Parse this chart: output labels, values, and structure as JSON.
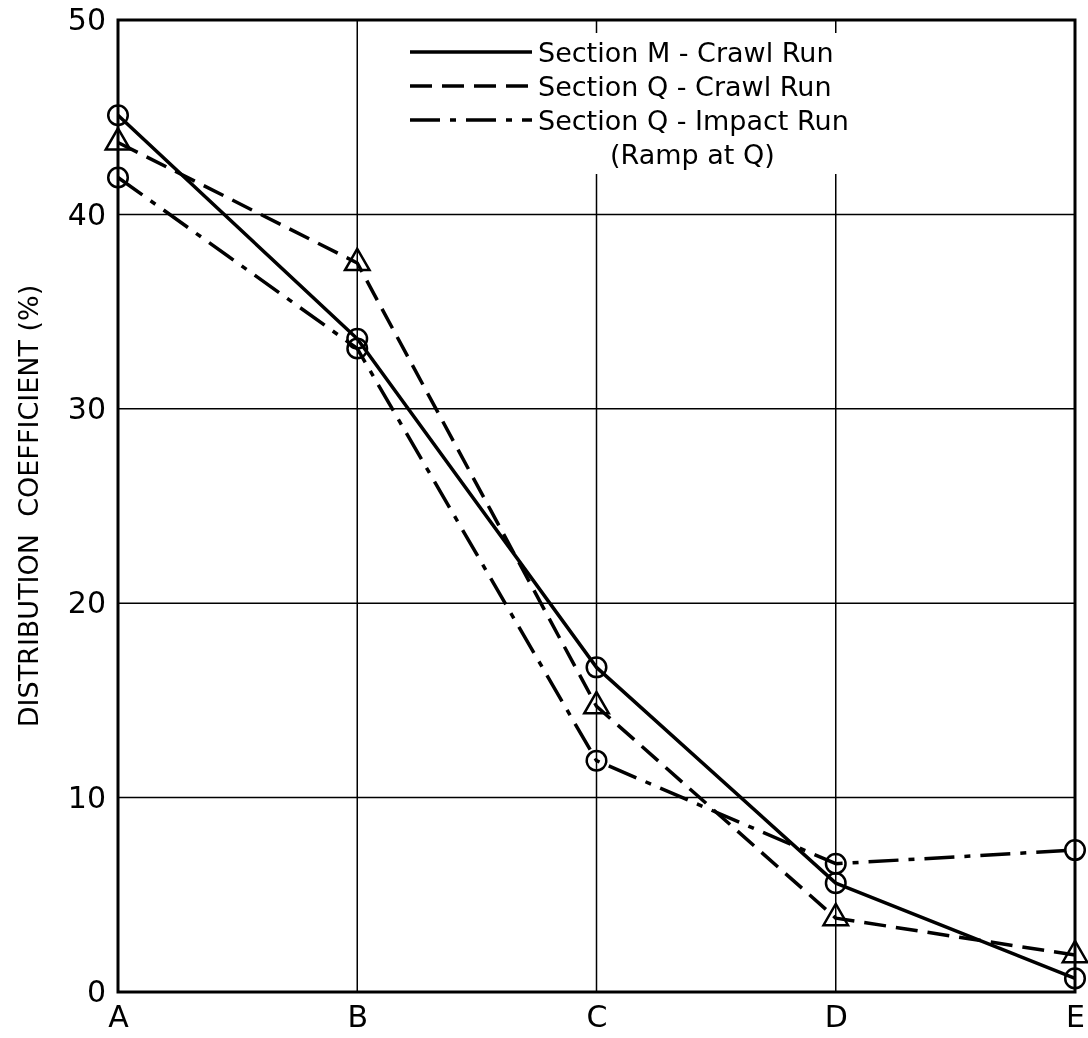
{
  "chart_data": {
    "type": "line",
    "ylabel": "DISTRIBUTION  COEFFICIENT (%)",
    "categories": [
      "A",
      "B",
      "C",
      "D",
      "E"
    ],
    "ylim": [
      0,
      50
    ],
    "yticks": [
      0,
      10,
      20,
      30,
      40,
      50
    ],
    "grid": true,
    "legend": "top right",
    "series": [
      {
        "name": "Section M - Crawl Run",
        "color": "#000000",
        "line_style": "solid",
        "marker": "circle",
        "values": [
          45.1,
          33.6,
          16.7,
          5.6,
          0.7
        ]
      },
      {
        "name": "Section Q - Crawl Run",
        "color": "#000000",
        "line_style": "dashed",
        "marker": "triangle",
        "values": [
          43.7,
          37.5,
          14.7,
          3.8,
          1.9
        ]
      },
      {
        "name": "Section Q - Impact Run\n(Ramp at Q)",
        "color": "#000000",
        "line_style": "dashdot",
        "marker": "circle",
        "values": [
          41.9,
          33.1,
          11.9,
          6.6,
          7.3
        ]
      }
    ]
  }
}
